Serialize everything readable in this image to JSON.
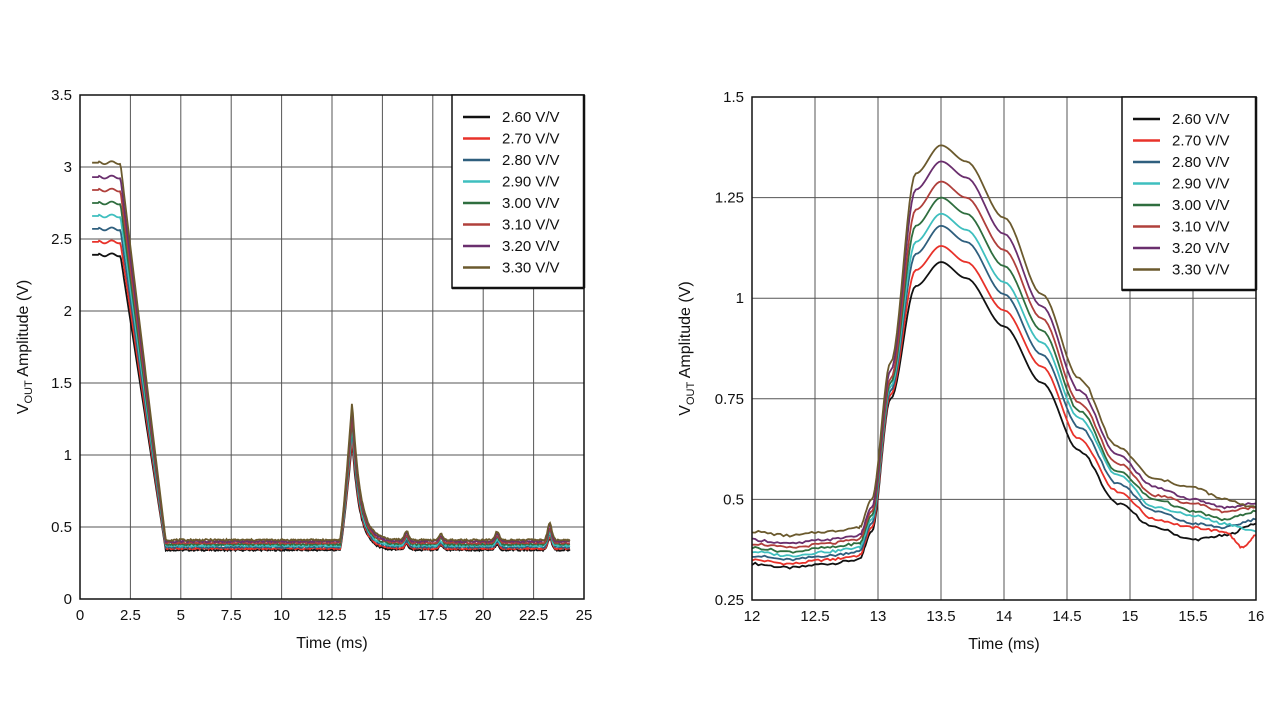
{
  "chart_data": [
    {
      "type": "line",
      "xlabel": "Time (ms)",
      "ylabel_main": "V",
      "ylabel_sub": "OUT",
      "ylabel_rest": " Amplitude (V)",
      "xlim": [
        0,
        25
      ],
      "ylim": [
        0,
        3.5
      ],
      "x_ticks": [
        0,
        2.5,
        5,
        7.5,
        10,
        12.5,
        15,
        17.5,
        20,
        22.5,
        25
      ],
      "x_tick_labels": [
        "0",
        "2.5",
        "5",
        "7.5",
        "10",
        "12.5",
        "15",
        "17.5",
        "20",
        "22.5",
        "25"
      ],
      "y_ticks": [
        0,
        0.5,
        1,
        1.5,
        2,
        2.5,
        3,
        3.5
      ],
      "y_tick_labels": [
        "0",
        "0.5",
        "1",
        "1.5",
        "2",
        "2.5",
        "3",
        "3.5"
      ],
      "grid": true,
      "legend_position": "top-right",
      "series": [
        {
          "name": "2.60 V/V",
          "color": "#111111",
          "start": 2.39,
          "low": 0.34,
          "peak": 1.09,
          "bumps": [
            0.04,
            0.03,
            0.04,
            0.08
          ]
        },
        {
          "name": "2.70 V/V",
          "color": "#e8322a",
          "start": 2.48,
          "low": 0.35,
          "peak": 1.13,
          "bumps": [
            0.04,
            0.03,
            0.04,
            0.08
          ]
        },
        {
          "name": "2.80 V/V",
          "color": "#2f5f7e",
          "start": 2.57,
          "low": 0.36,
          "peak": 1.18,
          "bumps": [
            0.04,
            0.03,
            0.04,
            0.09
          ]
        },
        {
          "name": "2.90 V/V",
          "color": "#3fbfbf",
          "start": 2.66,
          "low": 0.37,
          "peak": 1.21,
          "bumps": [
            0.05,
            0.03,
            0.04,
            0.09
          ]
        },
        {
          "name": "3.00 V/V",
          "color": "#2f6e3f",
          "start": 2.75,
          "low": 0.38,
          "peak": 1.25,
          "bumps": [
            0.05,
            0.04,
            0.05,
            0.1
          ]
        },
        {
          "name": "3.10 V/V",
          "color": "#b0403c",
          "start": 2.84,
          "low": 0.39,
          "peak": 1.29,
          "bumps": [
            0.05,
            0.04,
            0.05,
            0.1
          ]
        },
        {
          "name": "3.20 V/V",
          "color": "#6a2f6e",
          "start": 2.93,
          "low": 0.4,
          "peak": 1.34,
          "bumps": [
            0.06,
            0.04,
            0.05,
            0.11
          ]
        },
        {
          "name": "3.30 V/V",
          "color": "#6b5a2e",
          "start": 3.03,
          "low": 0.41,
          "peak": 1.38,
          "bumps": [
            0.06,
            0.04,
            0.06,
            0.12
          ]
        }
      ]
    },
    {
      "type": "line",
      "xlabel": "Time (ms)",
      "ylabel_main": "V",
      "ylabel_sub": "OUT",
      "ylabel_rest": " Amplitude (V)",
      "xlim": [
        12,
        16
      ],
      "ylim": [
        0.25,
        1.5
      ],
      "x_ticks": [
        12,
        12.5,
        13,
        13.5,
        14,
        14.5,
        15,
        15.5,
        16
      ],
      "x_tick_labels": [
        "12",
        "12.5",
        "13",
        "13.5",
        "14",
        "14.5",
        "15",
        "15.5",
        "16"
      ],
      "y_ticks": [
        0.25,
        0.5,
        0.75,
        1,
        1.25,
        1.5
      ],
      "y_tick_labels": [
        "0.25",
        "0.5",
        "0.75",
        "1",
        "1.25",
        "1.5"
      ],
      "grid": true,
      "legend_position": "top-right",
      "series": [
        {
          "name": "2.60 V/V",
          "color": "#111111",
          "points": [
            [
              12,
              0.34
            ],
            [
              12.3,
              0.33
            ],
            [
              12.6,
              0.34
            ],
            [
              12.85,
              0.35
            ],
            [
              12.95,
              0.42
            ],
            [
              13.1,
              0.75
            ],
            [
              13.3,
              1.03
            ],
            [
              13.5,
              1.09
            ],
            [
              13.7,
              1.05
            ],
            [
              14,
              0.93
            ],
            [
              14.3,
              0.79
            ],
            [
              14.6,
              0.62
            ],
            [
              14.9,
              0.49
            ],
            [
              15.2,
              0.43
            ],
            [
              15.5,
              0.4
            ],
            [
              15.75,
              0.41
            ],
            [
              16,
              0.44
            ]
          ]
        },
        {
          "name": "2.70 V/V",
          "color": "#e8322a",
          "points": [
            [
              12,
              0.35
            ],
            [
              12.3,
              0.34
            ],
            [
              12.6,
              0.35
            ],
            [
              12.85,
              0.36
            ],
            [
              12.95,
              0.43
            ],
            [
              13.1,
              0.76
            ],
            [
              13.3,
              1.07
            ],
            [
              13.5,
              1.13
            ],
            [
              13.7,
              1.09
            ],
            [
              14,
              0.97
            ],
            [
              14.3,
              0.83
            ],
            [
              14.6,
              0.65
            ],
            [
              14.9,
              0.52
            ],
            [
              15.2,
              0.45
            ],
            [
              15.5,
              0.43
            ],
            [
              15.75,
              0.42
            ],
            [
              15.9,
              0.38
            ],
            [
              16,
              0.41
            ]
          ]
        },
        {
          "name": "2.80 V/V",
          "color": "#2f5f7e",
          "points": [
            [
              12,
              0.36
            ],
            [
              12.3,
              0.35
            ],
            [
              12.6,
              0.36
            ],
            [
              12.85,
              0.37
            ],
            [
              12.95,
              0.44
            ],
            [
              13.1,
              0.77
            ],
            [
              13.3,
              1.11
            ],
            [
              13.5,
              1.18
            ],
            [
              13.7,
              1.14
            ],
            [
              14,
              1.01
            ],
            [
              14.3,
              0.86
            ],
            [
              14.6,
              0.68
            ],
            [
              14.9,
              0.54
            ],
            [
              15.2,
              0.47
            ],
            [
              15.5,
              0.44
            ],
            [
              15.75,
              0.43
            ],
            [
              16,
              0.45
            ]
          ]
        },
        {
          "name": "2.90 V/V",
          "color": "#3fbfbf",
          "points": [
            [
              12,
              0.37
            ],
            [
              12.3,
              0.36
            ],
            [
              12.6,
              0.37
            ],
            [
              12.85,
              0.38
            ],
            [
              12.95,
              0.45
            ],
            [
              13.1,
              0.78
            ],
            [
              13.3,
              1.14
            ],
            [
              13.5,
              1.21
            ],
            [
              13.7,
              1.17
            ],
            [
              14,
              1.04
            ],
            [
              14.3,
              0.89
            ],
            [
              14.6,
              0.7
            ],
            [
              14.9,
              0.56
            ],
            [
              15.2,
              0.48
            ],
            [
              15.5,
              0.46
            ],
            [
              15.75,
              0.44
            ],
            [
              16,
              0.42
            ]
          ]
        },
        {
          "name": "3.00 V/V",
          "color": "#2f6e3f",
          "points": [
            [
              12,
              0.38
            ],
            [
              12.3,
              0.37
            ],
            [
              12.6,
              0.38
            ],
            [
              12.85,
              0.39
            ],
            [
              12.95,
              0.46
            ],
            [
              13.1,
              0.79
            ],
            [
              13.3,
              1.18
            ],
            [
              13.5,
              1.25
            ],
            [
              13.7,
              1.21
            ],
            [
              14,
              1.08
            ],
            [
              14.3,
              0.92
            ],
            [
              14.6,
              0.72
            ],
            [
              14.9,
              0.57
            ],
            [
              15.2,
              0.5
            ],
            [
              15.5,
              0.47
            ],
            [
              15.75,
              0.45
            ],
            [
              16,
              0.47
            ]
          ]
        },
        {
          "name": "3.10 V/V",
          "color": "#b0403c",
          "points": [
            [
              12,
              0.39
            ],
            [
              12.3,
              0.38
            ],
            [
              12.6,
              0.39
            ],
            [
              12.85,
              0.4
            ],
            [
              12.95,
              0.47
            ],
            [
              13.1,
              0.8
            ],
            [
              13.3,
              1.22
            ],
            [
              13.5,
              1.29
            ],
            [
              13.7,
              1.25
            ],
            [
              14,
              1.12
            ],
            [
              14.3,
              0.95
            ],
            [
              14.6,
              0.74
            ],
            [
              14.9,
              0.59
            ],
            [
              15.2,
              0.51
            ],
            [
              15.5,
              0.49
            ],
            [
              15.75,
              0.47
            ],
            [
              16,
              0.48
            ]
          ]
        },
        {
          "name": "3.20 V/V",
          "color": "#6a2f6e",
          "points": [
            [
              12,
              0.4
            ],
            [
              12.3,
              0.39
            ],
            [
              12.6,
              0.4
            ],
            [
              12.85,
              0.41
            ],
            [
              12.95,
              0.48
            ],
            [
              13.1,
              0.82
            ],
            [
              13.3,
              1.27
            ],
            [
              13.5,
              1.34
            ],
            [
              13.7,
              1.3
            ],
            [
              14,
              1.16
            ],
            [
              14.3,
              0.98
            ],
            [
              14.6,
              0.77
            ],
            [
              14.9,
              0.61
            ],
            [
              15.2,
              0.53
            ],
            [
              15.5,
              0.5
            ],
            [
              15.75,
              0.48
            ],
            [
              16,
              0.49
            ]
          ]
        },
        {
          "name": "3.30 V/V",
          "color": "#6b5a2e",
          "points": [
            [
              12,
              0.42
            ],
            [
              12.3,
              0.41
            ],
            [
              12.6,
              0.42
            ],
            [
              12.85,
              0.43
            ],
            [
              12.95,
              0.5
            ],
            [
              13.1,
              0.84
            ],
            [
              13.3,
              1.31
            ],
            [
              13.5,
              1.38
            ],
            [
              13.7,
              1.34
            ],
            [
              14,
              1.2
            ],
            [
              14.3,
              1.01
            ],
            [
              14.6,
              0.8
            ],
            [
              14.9,
              0.63
            ],
            [
              15.2,
              0.55
            ],
            [
              15.5,
              0.53
            ],
            [
              15.75,
              0.5
            ],
            [
              16,
              0.48
            ]
          ]
        }
      ]
    }
  ]
}
